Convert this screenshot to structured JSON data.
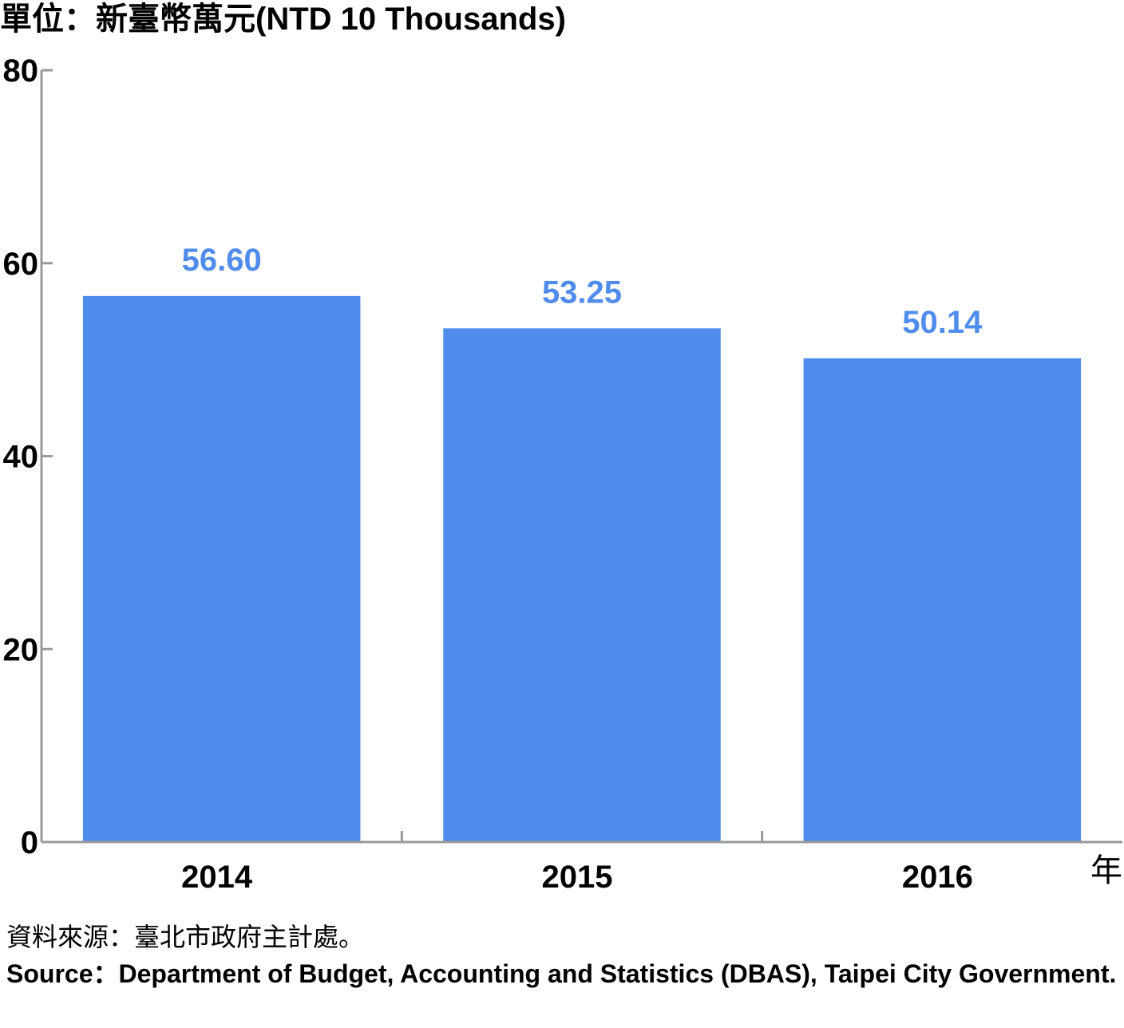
{
  "chart_data": {
    "type": "bar",
    "unit_label": "單位：新臺幣萬元(NTD 10 Thousands)",
    "categories": [
      "2014",
      "2015",
      "2016"
    ],
    "values": [
      56.6,
      53.25,
      50.14
    ],
    "value_labels": [
      "56.60",
      "53.25",
      "50.14"
    ],
    "x_unit_suffix": "年",
    "ylim": [
      0,
      80
    ],
    "y_ticks": [
      "0",
      "20",
      "40",
      "60",
      "80"
    ],
    "grid": false,
    "legend": "none",
    "colors": {
      "bar": "#4f8cec",
      "value_label": "#4f8cec",
      "axis": "#999999"
    }
  },
  "source": {
    "zh": "資料來源：臺北市政府主計處。",
    "en_label": "Source：",
    "en_text": "Department of Budget, Accounting and Statistics (DBAS), Taipei City Government."
  }
}
